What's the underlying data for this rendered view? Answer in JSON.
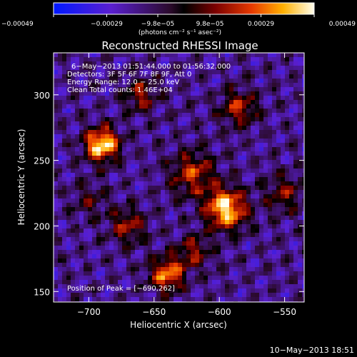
{
  "chart_data": {
    "type": "heatmap",
    "title": "Reconstructed RHESSI Image",
    "xlabel": "Heliocentric X (arcsec)",
    "ylabel": "Heliocentric Y (arcsec)",
    "xlim": [
      -727,
      -535
    ],
    "ylim": [
      142,
      332
    ],
    "xticks": [
      -700,
      -650,
      -600,
      -550
    ],
    "yticks": [
      150,
      200,
      250,
      300
    ],
    "xtick_labels": [
      "−700",
      "−650",
      "−600",
      "−550"
    ],
    "ytick_labels": [
      "150",
      "200",
      "250",
      "300"
    ],
    "colorbar": {
      "min": -0.00049,
      "max": 0.00049,
      "ticks": [
        -0.00049,
        -0.00029,
        -9.8e-05,
        9.8e-05,
        0.00029,
        0.00049
      ],
      "tick_labels": [
        "−0.00049",
        "−0.00029",
        "−9.8e−05",
        "9.8e−05",
        "0.00029",
        "0.00049"
      ],
      "unit_label": "(photons cm⁻² s⁻¹ asec⁻²)"
    },
    "annotations": [
      "6−May−2013 01:51:44.000 to 01:56:32.000",
      "Detectors: 3F 5F 6F 7F 8F 9F, Att 0",
      "Energy Range: 12.0 − 25.0 keV",
      "Clean     Total counts: 1.46E+04"
    ],
    "peak_label": "Position of Peak = [−690,262]",
    "peak": [
      -690,
      262
    ],
    "sources": [
      {
        "x": -690,
        "y": 262,
        "amp": 1.0,
        "sigma": 9
      },
      {
        "x": -595,
        "y": 213,
        "amp": 0.95,
        "sigma": 11
      },
      {
        "x": -640,
        "y": 163,
        "amp": 0.75,
        "sigma": 9
      },
      {
        "x": -620,
        "y": 240,
        "amp": 0.55,
        "sigma": 12
      },
      {
        "x": -585,
        "y": 290,
        "amp": 0.5,
        "sigma": 10
      },
      {
        "x": -660,
        "y": 300,
        "amp": 0.45,
        "sigma": 9
      },
      {
        "x": -550,
        "y": 225,
        "amp": 0.4,
        "sigma": 10
      },
      {
        "x": -670,
        "y": 200,
        "amp": 0.45,
        "sigma": 10
      },
      {
        "x": -700,
        "y": 220,
        "amp": 0.3,
        "sigma": 9
      },
      {
        "x": -620,
        "y": 180,
        "amp": 0.45,
        "sigma": 9
      }
    ]
  },
  "footer": {
    "timestamp": "10−May−2013 18:51"
  }
}
